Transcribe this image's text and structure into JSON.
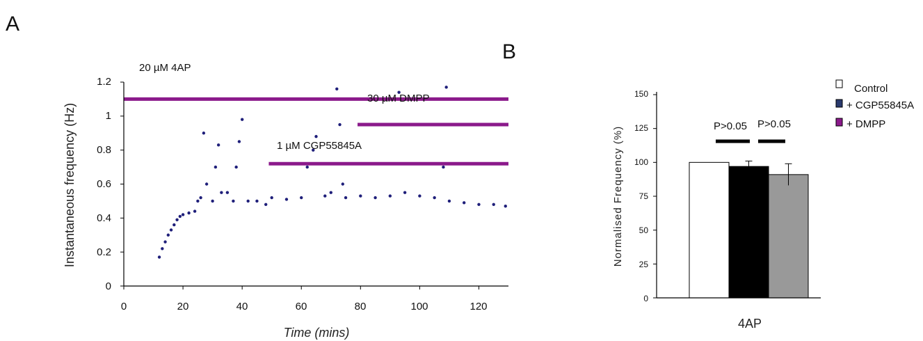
{
  "panels": {
    "a": "A",
    "b": "B"
  },
  "chart_data": [
    {
      "type": "scatter",
      "xlabel": "Time (mins)",
      "ylabel": "Instantaneous frequency (Hz)",
      "xlim": [
        0,
        130
      ],
      "ylim": [
        0,
        1.2
      ],
      "x_ticks": [
        "0",
        "20",
        "40",
        "60",
        "80",
        "100",
        "120"
      ],
      "y_ticks": [
        "0",
        "0.2",
        "0.4",
        "0.6",
        "0.8",
        "1",
        "1.2"
      ],
      "marker_color": "#1f1f7a",
      "bar_color": "#8b1a8b",
      "series": [
        {
          "values": [
            [
              12,
              0.17
            ],
            [
              13,
              0.22
            ],
            [
              14,
              0.26
            ],
            [
              15,
              0.3
            ],
            [
              16,
              0.33
            ],
            [
              17,
              0.36
            ],
            [
              18,
              0.39
            ],
            [
              19,
              0.41
            ],
            [
              20,
              0.42
            ],
            [
              22,
              0.43
            ],
            [
              24,
              0.44
            ],
            [
              25,
              0.5
            ],
            [
              26,
              0.52
            ],
            [
              27,
              0.9
            ],
            [
              28,
              0.6
            ],
            [
              30,
              0.5
            ],
            [
              31,
              0.7
            ],
            [
              32,
              0.83
            ],
            [
              33,
              0.55
            ],
            [
              35,
              0.55
            ],
            [
              37,
              0.5
            ],
            [
              38,
              0.7
            ],
            [
              39,
              0.85
            ],
            [
              40,
              0.98
            ],
            [
              42,
              0.5
            ],
            [
              45,
              0.5
            ],
            [
              48,
              0.48
            ],
            [
              50,
              0.52
            ],
            [
              55,
              0.51
            ],
            [
              60,
              0.52
            ],
            [
              62,
              0.7
            ],
            [
              64,
              0.8
            ],
            [
              65,
              0.88
            ],
            [
              68,
              0.53
            ],
            [
              70,
              0.55
            ],
            [
              72,
              1.16
            ],
            [
              73,
              0.95
            ],
            [
              74,
              0.6
            ],
            [
              75,
              0.52
            ],
            [
              80,
              0.53
            ],
            [
              85,
              0.52
            ],
            [
              90,
              0.53
            ],
            [
              93,
              1.14
            ],
            [
              95,
              0.55
            ],
            [
              100,
              0.53
            ],
            [
              105,
              0.52
            ],
            [
              108,
              0.7
            ],
            [
              109,
              1.17
            ],
            [
              110,
              0.5
            ],
            [
              115,
              0.49
            ],
            [
              120,
              0.48
            ],
            [
              125,
              0.48
            ],
            [
              129,
              0.47
            ]
          ]
        }
      ],
      "annotations": [
        {
          "label": "20 µM 4AP",
          "start": 0,
          "end": 130,
          "y": 1.1
        },
        {
          "label": "30 µM DMPP",
          "start": 79,
          "end": 130,
          "y": 0.95
        },
        {
          "label": "1 µM CGP55845A",
          "start": 49,
          "end": 130,
          "y": 0.72
        }
      ]
    },
    {
      "type": "bar",
      "categories": [
        "Control",
        "+ CGP55845A",
        "+ DMPP"
      ],
      "xlabel": "4AP",
      "ylabel": "Normalised Frequency (%)",
      "ylim": [
        0,
        150
      ],
      "y_ticks": [
        "0",
        "25",
        "50",
        "75",
        "100",
        "125",
        "150"
      ],
      "values": [
        100,
        97,
        91
      ],
      "errors": [
        0,
        4,
        8
      ],
      "bar_colors": [
        "#ffffff",
        "#000000",
        "#999999"
      ],
      "legend_colors": [
        "#ffffff",
        "#2a3a6e",
        "#8b1a8b"
      ],
      "legend": [
        "Control",
        "+ CGP55845A",
        "+ DMPP"
      ],
      "legend_position": "top-right",
      "significance": [
        {
          "label": "P>0.05",
          "from": 0,
          "to": 1
        },
        {
          "label": "P>0.05",
          "from": 1,
          "to": 2
        }
      ]
    }
  ]
}
